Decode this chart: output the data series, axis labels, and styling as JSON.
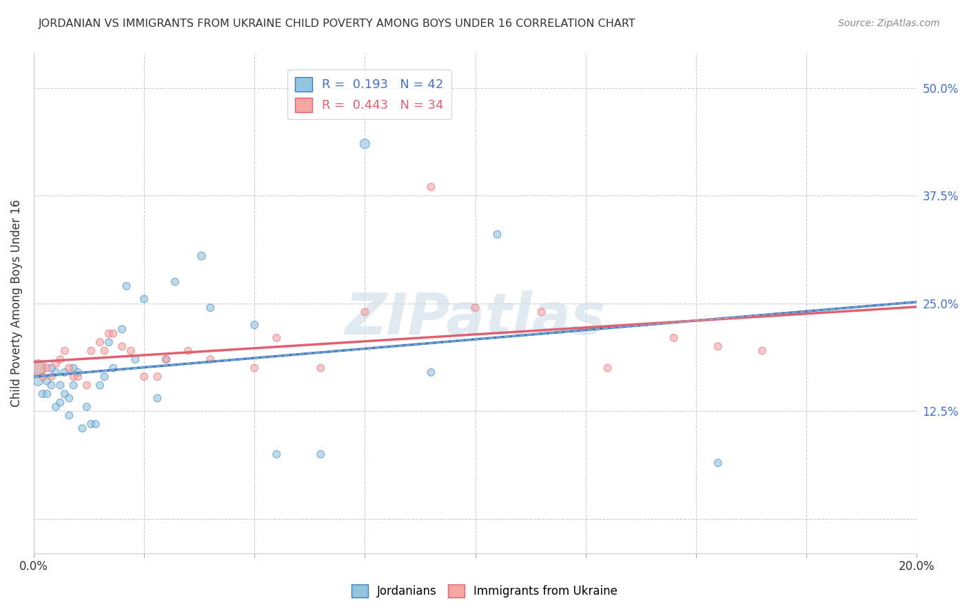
{
  "title": "JORDANIAN VS IMMIGRANTS FROM UKRAINE CHILD POVERTY AMONG BOYS UNDER 16 CORRELATION CHART",
  "source": "Source: ZipAtlas.com",
  "ylabel": "Child Poverty Among Boys Under 16",
  "xlim": [
    0.0,
    0.2
  ],
  "ylim": [
    -0.04,
    0.54
  ],
  "yticks": [
    0.0,
    0.125,
    0.25,
    0.375,
    0.5
  ],
  "ytick_labels": [
    "",
    "12.5%",
    "25.0%",
    "37.5%",
    "50.0%"
  ],
  "watermark_text": "ZIPatlas",
  "color_jordanian": "#92c5de",
  "color_ukraine": "#f4a6a0",
  "line_color_jordanian": "#3a7abf",
  "line_color_ukraine": "#e06070",
  "line_color_dashed": "#9ab8d8",
  "jordanian_x": [
    0.001,
    0.001,
    0.002,
    0.003,
    0.003,
    0.004,
    0.004,
    0.005,
    0.005,
    0.006,
    0.006,
    0.007,
    0.007,
    0.008,
    0.008,
    0.009,
    0.009,
    0.01,
    0.011,
    0.012,
    0.013,
    0.014,
    0.015,
    0.016,
    0.017,
    0.018,
    0.02,
    0.021,
    0.023,
    0.025,
    0.028,
    0.03,
    0.032,
    0.038,
    0.04,
    0.05,
    0.055,
    0.065,
    0.075,
    0.09,
    0.105,
    0.155
  ],
  "jordanian_y": [
    0.175,
    0.16,
    0.145,
    0.16,
    0.145,
    0.175,
    0.155,
    0.17,
    0.13,
    0.155,
    0.135,
    0.17,
    0.145,
    0.12,
    0.14,
    0.155,
    0.175,
    0.17,
    0.105,
    0.13,
    0.11,
    0.11,
    0.155,
    0.165,
    0.205,
    0.175,
    0.22,
    0.27,
    0.185,
    0.255,
    0.14,
    0.185,
    0.275,
    0.305,
    0.245,
    0.225,
    0.075,
    0.075,
    0.435,
    0.17,
    0.33,
    0.065
  ],
  "jordanian_sizes": [
    200,
    100,
    60,
    60,
    60,
    60,
    60,
    60,
    60,
    60,
    60,
    60,
    60,
    60,
    60,
    60,
    60,
    60,
    60,
    60,
    60,
    60,
    60,
    60,
    60,
    60,
    60,
    60,
    60,
    60,
    60,
    60,
    60,
    70,
    60,
    60,
    60,
    60,
    100,
    60,
    60,
    60
  ],
  "ukraine_x": [
    0.001,
    0.002,
    0.003,
    0.004,
    0.005,
    0.006,
    0.007,
    0.008,
    0.009,
    0.01,
    0.012,
    0.013,
    0.015,
    0.016,
    0.017,
    0.018,
    0.02,
    0.022,
    0.025,
    0.028,
    0.03,
    0.035,
    0.04,
    0.05,
    0.055,
    0.065,
    0.075,
    0.09,
    0.1,
    0.115,
    0.13,
    0.145,
    0.155,
    0.165
  ],
  "ukraine_y": [
    0.175,
    0.165,
    0.175,
    0.165,
    0.18,
    0.185,
    0.195,
    0.175,
    0.165,
    0.165,
    0.155,
    0.195,
    0.205,
    0.195,
    0.215,
    0.215,
    0.2,
    0.195,
    0.165,
    0.165,
    0.185,
    0.195,
    0.185,
    0.175,
    0.21,
    0.175,
    0.24,
    0.385,
    0.245,
    0.24,
    0.175,
    0.21,
    0.2,
    0.195
  ],
  "ukraine_sizes": [
    300,
    60,
    60,
    60,
    60,
    60,
    60,
    60,
    60,
    60,
    60,
    60,
    60,
    60,
    60,
    60,
    60,
    60,
    60,
    60,
    60,
    60,
    60,
    60,
    60,
    60,
    60,
    60,
    60,
    60,
    60,
    60,
    60,
    60
  ]
}
